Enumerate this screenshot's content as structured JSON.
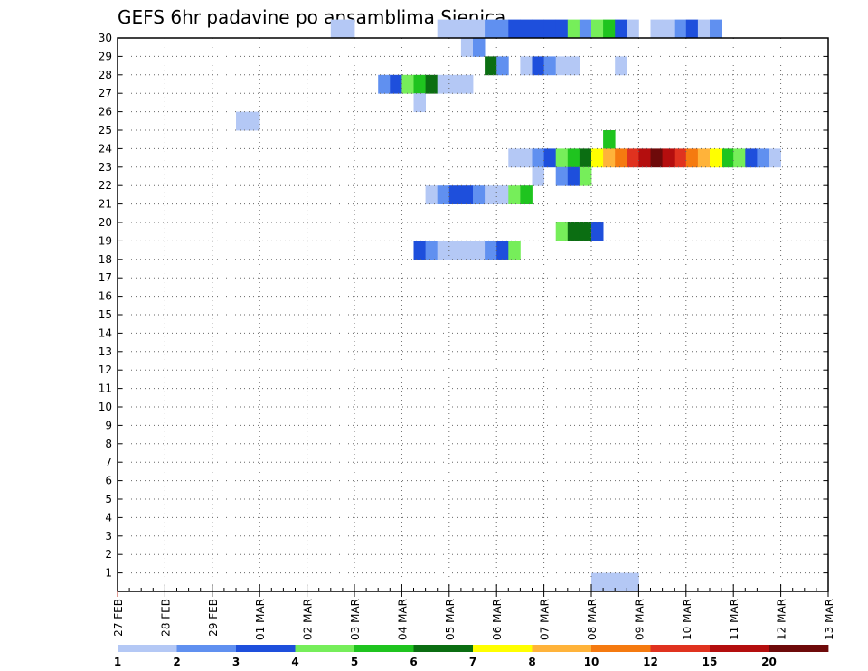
{
  "chart_data": {
    "type": "heatmap",
    "title": "GEFS 6hr padavine po ansamblima Sjenica",
    "xlabel": "",
    "ylabel": "",
    "x_ticks": [
      "27 FEB",
      "28 FEB",
      "29 FEB",
      "01 MAR",
      "02 MAR",
      "03 MAR",
      "04 MAR",
      "05 MAR",
      "06 MAR",
      "07 MAR",
      "08 MAR",
      "09 MAR",
      "10 MAR",
      "11 MAR",
      "12 MAR",
      "13 MAR"
    ],
    "y_ticks": [
      "1",
      "2",
      "3",
      "4",
      "5",
      "6",
      "7",
      "8",
      "9",
      "10",
      "11",
      "12",
      "13",
      "14",
      "15",
      "16",
      "17",
      "18",
      "19",
      "20",
      "21",
      "22",
      "23",
      "24",
      "25",
      "26",
      "27",
      "28",
      "29",
      "30"
    ],
    "xlim": [
      0,
      60
    ],
    "ylim": [
      0,
      30
    ],
    "grid": true,
    "colorbar": {
      "labels": [
        "1",
        "2",
        "3",
        "4",
        "5",
        "6",
        "7",
        "8",
        "10",
        "12",
        "15",
        "20"
      ],
      "colors": [
        "#b4c8f5",
        "#6090f0",
        "#1e4fdc",
        "#76ee5a",
        "#1fc41f",
        "#0b6e12",
        "#ffff00",
        "#ffb33a",
        "#f57a10",
        "#e0321f",
        "#b40e0e",
        "#6e0a0a"
      ]
    },
    "cells": [
      [
        40,
        0,
        1
      ],
      [
        41,
        0,
        1
      ],
      [
        42,
        0,
        1
      ],
      [
        43,
        0,
        1
      ],
      [
        18,
        30,
        1
      ],
      [
        19,
        30,
        1
      ],
      [
        27,
        30,
        1
      ],
      [
        28,
        30,
        1
      ],
      [
        29,
        30,
        1
      ],
      [
        30,
        30,
        1
      ],
      [
        31,
        30,
        2
      ],
      [
        32,
        30,
        2
      ],
      [
        33,
        30,
        3
      ],
      [
        34,
        30,
        3
      ],
      [
        35,
        30,
        3
      ],
      [
        36,
        30,
        3
      ],
      [
        37,
        30,
        3
      ],
      [
        38,
        30,
        4
      ],
      [
        39,
        30,
        2
      ],
      [
        40,
        30,
        4
      ],
      [
        41,
        30,
        5
      ],
      [
        42,
        30,
        3
      ],
      [
        43,
        30,
        1
      ],
      [
        45,
        30,
        1
      ],
      [
        46,
        30,
        1
      ],
      [
        47,
        30,
        2
      ],
      [
        48,
        30,
        3
      ],
      [
        49,
        30,
        1
      ],
      [
        50,
        30,
        2
      ],
      [
        29,
        29,
        1
      ],
      [
        30,
        29,
        2
      ],
      [
        31,
        28,
        6
      ],
      [
        32,
        28,
        2
      ],
      [
        34,
        28,
        1
      ],
      [
        35,
        28,
        3
      ],
      [
        36,
        28,
        2
      ],
      [
        37,
        28,
        1
      ],
      [
        38,
        28,
        1
      ],
      [
        42,
        28,
        1
      ],
      [
        22,
        27,
        2
      ],
      [
        23,
        27,
        3
      ],
      [
        24,
        27,
        4
      ],
      [
        25,
        27,
        5
      ],
      [
        26,
        27,
        6
      ],
      [
        27,
        27,
        1
      ],
      [
        28,
        27,
        1
      ],
      [
        29,
        27,
        1
      ],
      [
        25,
        26,
        1
      ],
      [
        10,
        25,
        1
      ],
      [
        11,
        25,
        1
      ],
      [
        41,
        24,
        5
      ],
      [
        33,
        23,
        1
      ],
      [
        34,
        23,
        1
      ],
      [
        35,
        23,
        2
      ],
      [
        36,
        23,
        3
      ],
      [
        37,
        23,
        4
      ],
      [
        38,
        23,
        5
      ],
      [
        39,
        23,
        6
      ],
      [
        40,
        23,
        7
      ],
      [
        41,
        23,
        8
      ],
      [
        42,
        23,
        9
      ],
      [
        43,
        23,
        10
      ],
      [
        44,
        23,
        11
      ],
      [
        45,
        23,
        12
      ],
      [
        46,
        23,
        11
      ],
      [
        47,
        23,
        10
      ],
      [
        48,
        23,
        9
      ],
      [
        49,
        23,
        8
      ],
      [
        50,
        23,
        7
      ],
      [
        51,
        23,
        5
      ],
      [
        52,
        23,
        4
      ],
      [
        53,
        23,
        3
      ],
      [
        54,
        23,
        2
      ],
      [
        55,
        23,
        1
      ],
      [
        35,
        22,
        1
      ],
      [
        37,
        22,
        2
      ],
      [
        38,
        22,
        3
      ],
      [
        39,
        22,
        4
      ],
      [
        26,
        21,
        1
      ],
      [
        27,
        21,
        2
      ],
      [
        28,
        21,
        3
      ],
      [
        29,
        21,
        3
      ],
      [
        30,
        21,
        2
      ],
      [
        31,
        21,
        1
      ],
      [
        32,
        21,
        1
      ],
      [
        33,
        21,
        4
      ],
      [
        34,
        21,
        5
      ],
      [
        37,
        19,
        4
      ],
      [
        38,
        19,
        6
      ],
      [
        39,
        19,
        6
      ],
      [
        40,
        19,
        3
      ],
      [
        25,
        18,
        3
      ],
      [
        26,
        18,
        2
      ],
      [
        27,
        18,
        1
      ],
      [
        28,
        18,
        1
      ],
      [
        29,
        18,
        1
      ],
      [
        30,
        18,
        1
      ],
      [
        31,
        18,
        2
      ],
      [
        32,
        18,
        3
      ],
      [
        33,
        18,
        4
      ]
    ]
  }
}
